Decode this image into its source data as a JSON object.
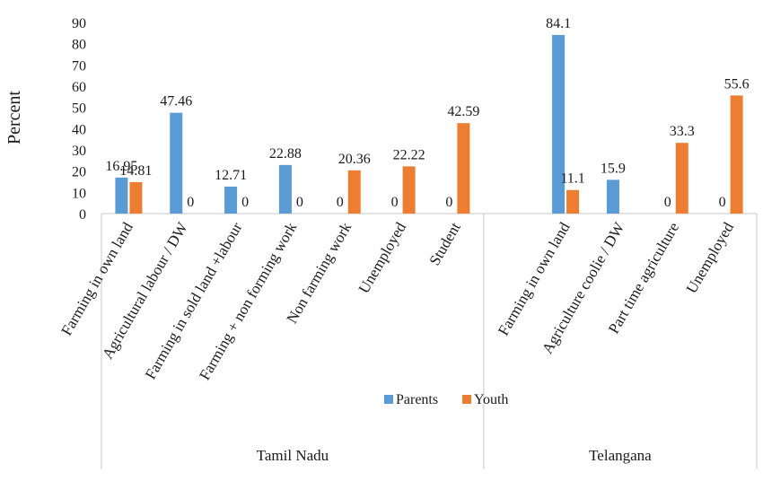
{
  "chart_data": {
    "type": "bar",
    "ylabel": "Percent",
    "ylim": [
      0,
      90
    ],
    "yticks": [
      "0",
      "10",
      "20",
      "30",
      "40",
      "50",
      "60",
      "70",
      "80",
      "90"
    ],
    "grid": false,
    "legend_position": "bottom-center",
    "series": [
      {
        "name": "Parents",
        "color": "#5B9BD5"
      },
      {
        "name": "Youth",
        "color": "#ED7D31"
      }
    ],
    "groups": [
      {
        "name": "Tamil Nadu",
        "categories": [
          {
            "label": "Farming in own land",
            "values": [
              16.95,
              14.81
            ],
            "labels": [
              "16.95",
              "14.81"
            ]
          },
          {
            "label": "Agricultural labour / DW",
            "values": [
              47.46,
              0
            ],
            "labels": [
              "47.46",
              "0"
            ]
          },
          {
            "label": "Farming in sold land +labour",
            "values": [
              12.71,
              0
            ],
            "labels": [
              "12.71",
              "0"
            ]
          },
          {
            "label": "Farming + non forming work",
            "values": [
              22.88,
              0
            ],
            "labels": [
              "22.88",
              "0"
            ]
          },
          {
            "label": "Non farming work",
            "values": [
              0,
              20.36
            ],
            "labels": [
              "0",
              "20.36"
            ]
          },
          {
            "label": "Unemployed",
            "values": [
              0,
              22.22
            ],
            "labels": [
              "0",
              "22.22"
            ]
          },
          {
            "label": "Student",
            "values": [
              0,
              42.59
            ],
            "labels": [
              "0",
              "42.59"
            ]
          }
        ]
      },
      {
        "name": "Telangana",
        "categories": [
          {
            "label": "",
            "values": [
              null,
              null
            ],
            "labels": [
              "",
              ""
            ]
          },
          {
            "label": "Farming in own land",
            "values": [
              84.1,
              11.1
            ],
            "labels": [
              "84.1",
              "11.1"
            ]
          },
          {
            "label": "Agriculture coolie / DW",
            "values": [
              15.9,
              null
            ],
            "labels": [
              "15.9",
              ""
            ]
          },
          {
            "label": "Part time agriculture",
            "values": [
              0,
              33.3
            ],
            "labels": [
              "0",
              "33.3"
            ]
          },
          {
            "label": "Unemployed",
            "values": [
              0,
              55.6
            ],
            "labels": [
              "0",
              "55.6"
            ]
          }
        ]
      }
    ]
  }
}
